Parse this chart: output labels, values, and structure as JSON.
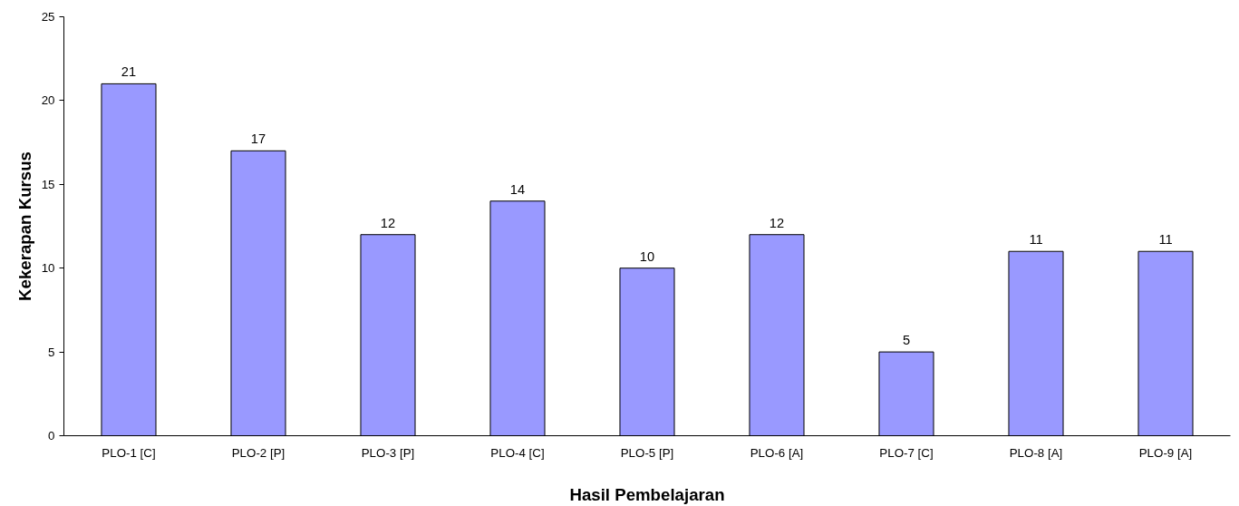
{
  "chart_data": {
    "type": "bar",
    "xlabel": "Hasil Pembelajaran",
    "ylabel": "Kekerapan Kursus",
    "categories": [
      "PLO-1 [C]",
      "PLO-2 [P]",
      "PLO-3 [P]",
      "PLO-4 [C]",
      "PLO-5 [P]",
      "PLO-6 [A]",
      "PLO-7 [C]",
      "PLO-8 [A]",
      "PLO-9 [A]"
    ],
    "values": [
      21,
      17,
      12,
      14,
      10,
      12,
      5,
      11,
      11
    ],
    "color": "#9999ff",
    "ylim": [
      0,
      25
    ],
    "yticks": [
      0,
      5,
      10,
      15,
      20,
      25
    ],
    "grid": false,
    "data_labels": true
  }
}
